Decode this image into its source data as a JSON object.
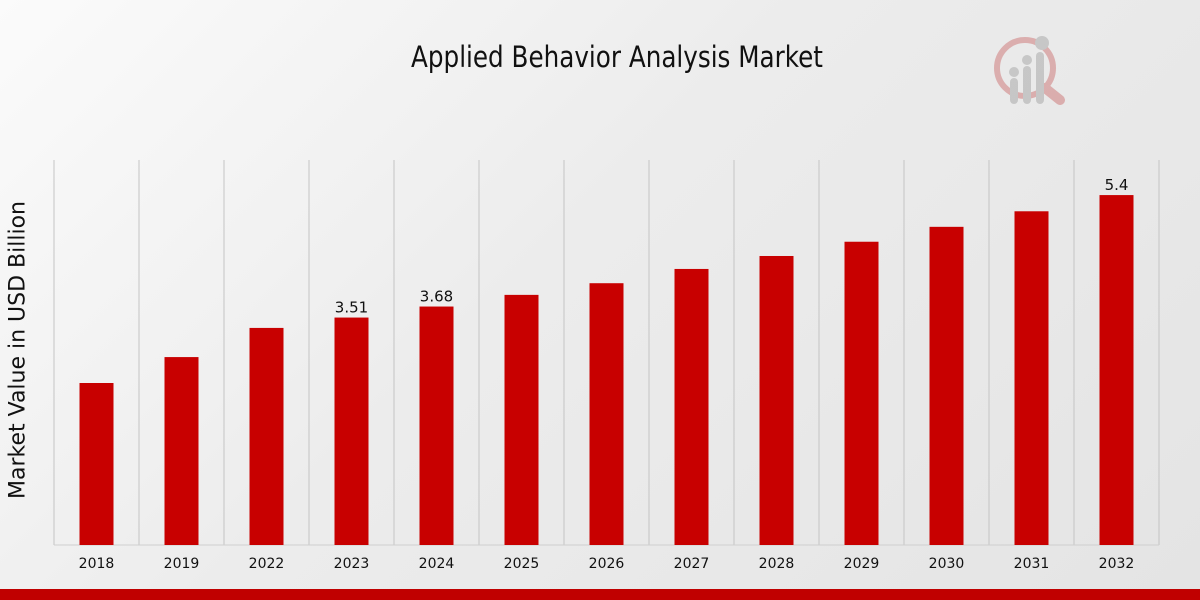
{
  "chart_data": {
    "type": "bar",
    "title": "Applied Behavior Analysis Market",
    "xlabel": "",
    "ylabel": "Market Value in USD Billion",
    "categories": [
      "2018",
      "2019",
      "2022",
      "2023",
      "2024",
      "2025",
      "2026",
      "2027",
      "2028",
      "2029",
      "2030",
      "2031",
      "2032"
    ],
    "values": [
      2.5,
      2.9,
      3.35,
      3.51,
      3.68,
      3.86,
      4.04,
      4.26,
      4.46,
      4.68,
      4.91,
      5.15,
      5.4
    ],
    "data_labels": {
      "2023": "3.51",
      "2024": "3.68",
      "2032": "5.4"
    },
    "ylim": [
      0,
      5.95
    ],
    "grid": "vertical",
    "bar_color": "#c80000"
  }
}
